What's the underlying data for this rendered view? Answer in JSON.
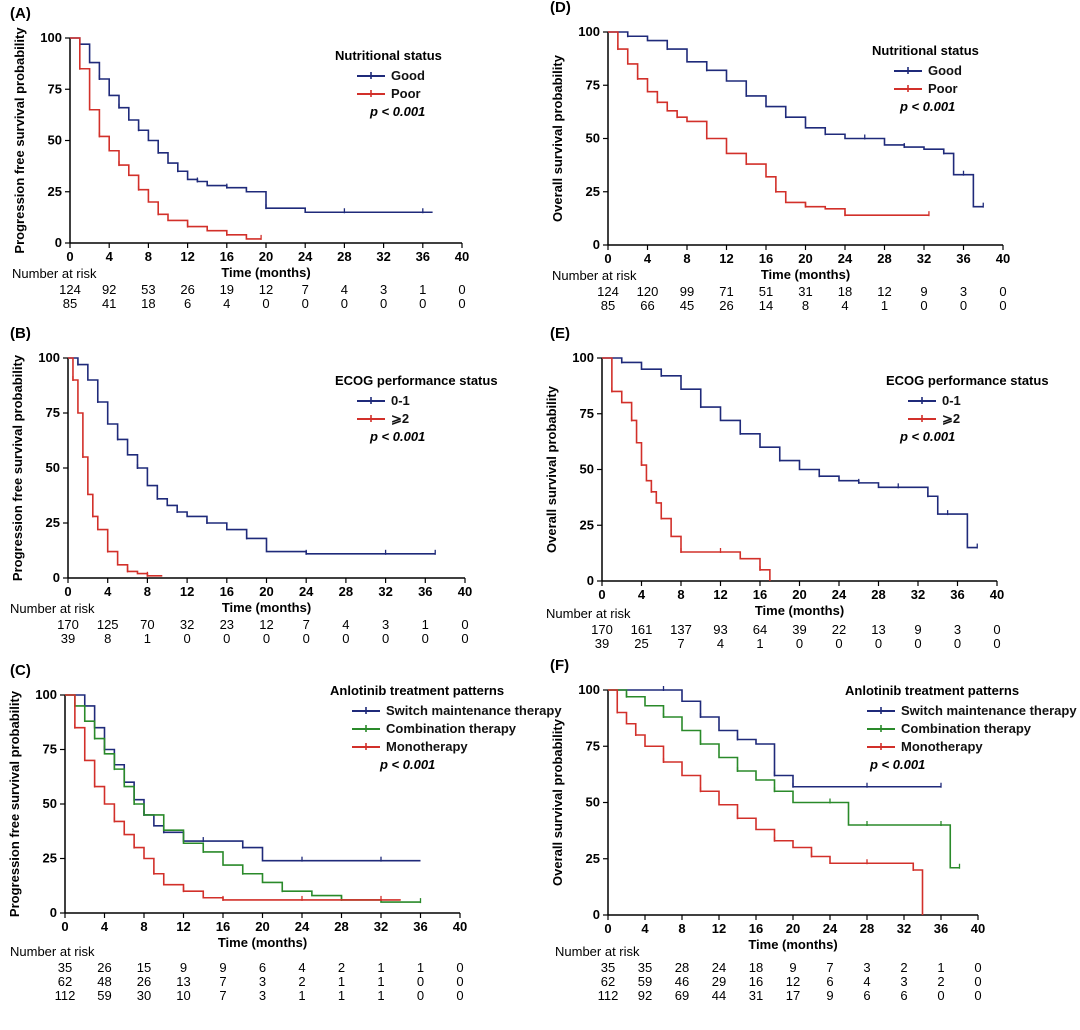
{
  "chart_data": [
    {
      "id": "A",
      "label": "(A)",
      "type": "line",
      "step": true,
      "ylabel": "Progression free survival probability",
      "xlabel": "Time (months)",
      "xlim": [
        0,
        40
      ],
      "ylim": [
        0,
        100
      ],
      "xticks": [
        "0",
        "4",
        "8",
        "12",
        "16",
        "20",
        "24",
        "28",
        "32",
        "36",
        "40"
      ],
      "yticks": [
        "0",
        "25",
        "50",
        "75",
        "100"
      ],
      "legend_title": "Nutritional status",
      "p_value": "p < 0.001",
      "risk_header": "Number at risk",
      "series": [
        {
          "name": "Good",
          "color": "#1f2a7a",
          "x": [
            0,
            1,
            2,
            3,
            4,
            5,
            6,
            7,
            8,
            9,
            10,
            11,
            12,
            13,
            14,
            16,
            18,
            20,
            24,
            28,
            32,
            36,
            37
          ],
          "y": [
            100,
            97,
            88,
            80,
            72,
            66,
            60,
            55,
            50,
            44,
            39,
            35,
            31,
            30,
            28,
            27,
            25,
            17,
            15,
            15,
            15,
            15,
            15
          ],
          "risk": [
            "124",
            "92",
            "53",
            "26",
            "19",
            "12",
            "7",
            "4",
            "3",
            "1",
            "0"
          ]
        },
        {
          "name": "Poor",
          "color": "#d2302a",
          "x": [
            0,
            1,
            2,
            3,
            4,
            5,
            6,
            7,
            8,
            9,
            10,
            12,
            14,
            16,
            18,
            19.5
          ],
          "y": [
            100,
            85,
            65,
            52,
            45,
            38,
            33,
            26,
            20,
            14,
            11,
            8,
            6,
            4,
            2,
            2
          ],
          "risk": [
            "85",
            "41",
            "18",
            "6",
            "4",
            "0",
            "0",
            "0",
            "0",
            "0",
            "0"
          ]
        }
      ]
    },
    {
      "id": "B",
      "label": "(B)",
      "type": "line",
      "step": true,
      "ylabel": "Progression free survival probability",
      "xlabel": "Time (months)",
      "xlim": [
        0,
        40
      ],
      "ylim": [
        0,
        100
      ],
      "xticks": [
        "0",
        "4",
        "8",
        "12",
        "16",
        "20",
        "24",
        "28",
        "32",
        "36",
        "40"
      ],
      "yticks": [
        "0",
        "25",
        "50",
        "75",
        "100"
      ],
      "legend_title": "ECOG performance status",
      "p_value": "p < 0.001",
      "risk_header": "Number at risk",
      "series": [
        {
          "name": "0-1",
          "color": "#1f2a7a",
          "x": [
            0,
            1,
            2,
            3,
            4,
            5,
            6,
            7,
            8,
            9,
            10,
            11,
            12,
            14,
            16,
            18,
            20,
            24,
            28,
            32,
            36,
            37
          ],
          "y": [
            100,
            97,
            90,
            80,
            70,
            63,
            56,
            50,
            42,
            36,
            33,
            30,
            28,
            25,
            22,
            18,
            12,
            11,
            11,
            11,
            11,
            11
          ],
          "risk": [
            "170",
            "125",
            "70",
            "32",
            "23",
            "12",
            "7",
            "4",
            "3",
            "1",
            "0"
          ]
        },
        {
          "name": "⩾2",
          "color": "#d2302a",
          "x": [
            0,
            0.5,
            1,
            1.5,
            2,
            2.5,
            3,
            4,
            5,
            6,
            7,
            8,
            9.5
          ],
          "y": [
            100,
            90,
            75,
            55,
            38,
            28,
            22,
            12,
            6,
            3,
            2,
            1,
            1
          ],
          "risk": [
            "39",
            "8",
            "1",
            "0",
            "0",
            "0",
            "0",
            "0",
            "0",
            "0",
            "0"
          ]
        }
      ]
    },
    {
      "id": "C",
      "label": "(C)",
      "type": "line",
      "step": true,
      "ylabel": "Progression free survival probability",
      "xlabel": "Time (months)",
      "xlim": [
        0,
        40
      ],
      "ylim": [
        0,
        100
      ],
      "xticks": [
        "0",
        "4",
        "8",
        "12",
        "16",
        "20",
        "24",
        "28",
        "32",
        "36",
        "40"
      ],
      "yticks": [
        "0",
        "25",
        "50",
        "75",
        "100"
      ],
      "legend_title": "Anlotinib treatment patterns",
      "p_value": "p < 0.001",
      "risk_header": "Number at risk",
      "series": [
        {
          "name": "Switch maintenance therapy",
          "color": "#1f2a7a",
          "x": [
            0,
            2,
            3,
            4,
            5,
            6,
            7,
            8,
            9,
            10,
            12,
            14,
            16,
            18,
            20,
            24,
            28,
            32,
            36
          ],
          "y": [
            100,
            95,
            85,
            75,
            68,
            60,
            52,
            45,
            40,
            37,
            33,
            33,
            33,
            30,
            24,
            24,
            24,
            24,
            24
          ],
          "risk": [
            "35",
            "26",
            "15",
            "9",
            "9",
            "6",
            "4",
            "2",
            "1",
            "1",
            "0"
          ]
        },
        {
          "name": "Combination therapy",
          "color": "#2a8a2a",
          "x": [
            0,
            1,
            2,
            3,
            4,
            5,
            6,
            7,
            8,
            10,
            12,
            14,
            16,
            18,
            20,
            22,
            25,
            28,
            32,
            36
          ],
          "y": [
            100,
            95,
            88,
            80,
            73,
            66,
            58,
            50,
            45,
            38,
            32,
            28,
            22,
            18,
            14,
            10,
            8,
            6,
            5,
            5
          ],
          "risk": [
            "62",
            "48",
            "26",
            "13",
            "7",
            "3",
            "2",
            "1",
            "1",
            "0",
            "0"
          ]
        },
        {
          "name": "Monotherapy",
          "color": "#d2302a",
          "x": [
            0,
            1,
            2,
            3,
            4,
            5,
            6,
            7,
            8,
            9,
            10,
            12,
            14,
            16,
            20,
            24,
            28,
            32,
            34
          ],
          "y": [
            100,
            85,
            70,
            58,
            50,
            42,
            36,
            30,
            25,
            18,
            13,
            10,
            7,
            6,
            6,
            6,
            6,
            6,
            6
          ],
          "risk": [
            "112",
            "59",
            "30",
            "10",
            "7",
            "3",
            "1",
            "1",
            "1",
            "0",
            "0"
          ]
        }
      ]
    },
    {
      "id": "D",
      "label": "(D)",
      "type": "line",
      "step": true,
      "ylabel": "Overall survival probability",
      "xlabel": "Time (months)",
      "xlim": [
        0,
        40
      ],
      "ylim": [
        0,
        100
      ],
      "xticks": [
        "0",
        "4",
        "8",
        "12",
        "16",
        "20",
        "24",
        "28",
        "32",
        "36",
        "40"
      ],
      "yticks": [
        "0",
        "25",
        "50",
        "75",
        "100"
      ],
      "legend_title": "Nutritional status",
      "p_value": "p < 0.001",
      "risk_header": "Number at risk",
      "series": [
        {
          "name": "Good",
          "color": "#1f2a7a",
          "x": [
            0,
            2,
            4,
            6,
            8,
            10,
            12,
            14,
            16,
            18,
            20,
            22,
            24,
            26,
            28,
            30,
            32,
            34,
            35,
            36,
            37,
            38
          ],
          "y": [
            100,
            98,
            96,
            92,
            86,
            82,
            77,
            70,
            65,
            60,
            55,
            52,
            50,
            50,
            47,
            46,
            45,
            43,
            33,
            33,
            18,
            18
          ],
          "risk": [
            "124",
            "120",
            "99",
            "71",
            "51",
            "31",
            "18",
            "12",
            "9",
            "3",
            "0"
          ]
        },
        {
          "name": "Poor",
          "color": "#d2302a",
          "x": [
            0,
            1,
            2,
            3,
            4,
            5,
            6,
            7,
            8,
            10,
            12,
            14,
            16,
            17,
            18,
            20,
            22,
            24,
            28,
            32.5
          ],
          "y": [
            100,
            92,
            85,
            78,
            72,
            67,
            63,
            60,
            58,
            50,
            43,
            38,
            32,
            25,
            20,
            18,
            17,
            14,
            14,
            14
          ],
          "risk": [
            "85",
            "66",
            "45",
            "26",
            "14",
            "8",
            "4",
            "1",
            "0",
            "0",
            "0"
          ]
        }
      ]
    },
    {
      "id": "E",
      "label": "(E)",
      "type": "line",
      "step": true,
      "ylabel": "Overall survival probability",
      "xlabel": "Time (months)",
      "xlim": [
        0,
        40
      ],
      "ylim": [
        0,
        100
      ],
      "xticks": [
        "0",
        "4",
        "8",
        "12",
        "16",
        "20",
        "24",
        "28",
        "32",
        "36",
        "40"
      ],
      "yticks": [
        "0",
        "25",
        "50",
        "75",
        "100"
      ],
      "legend_title": "ECOG performance status",
      "p_value": "p < 0.001",
      "risk_header": "Number at risk",
      "series": [
        {
          "name": "0-1",
          "color": "#1f2a7a",
          "x": [
            0,
            2,
            4,
            6,
            8,
            10,
            12,
            14,
            16,
            18,
            20,
            22,
            24,
            26,
            28,
            30,
            32,
            33,
            34,
            35,
            37,
            38
          ],
          "y": [
            100,
            98,
            95,
            92,
            86,
            78,
            72,
            66,
            60,
            54,
            50,
            47,
            45,
            44,
            42,
            42,
            42,
            38,
            30,
            30,
            15,
            15
          ],
          "risk": [
            "170",
            "161",
            "137",
            "93",
            "64",
            "39",
            "22",
            "13",
            "9",
            "3",
            "0"
          ]
        },
        {
          "name": "⩾2",
          "color": "#d2302a",
          "x": [
            0,
            1,
            2,
            3,
            3.5,
            4,
            4.5,
            5,
            5.5,
            6,
            7,
            8,
            10,
            12,
            14,
            16,
            17
          ],
          "y": [
            100,
            85,
            80,
            72,
            62,
            52,
            45,
            40,
            35,
            28,
            20,
            13,
            13,
            13,
            10,
            5,
            0
          ],
          "risk": [
            "39",
            "25",
            "7",
            "4",
            "1",
            "0",
            "0",
            "0",
            "0",
            "0",
            "0"
          ]
        }
      ]
    },
    {
      "id": "F",
      "label": "(F)",
      "type": "line",
      "step": true,
      "ylabel": "Overall survival probability",
      "xlabel": "Time (months)",
      "xlim": [
        0,
        40
      ],
      "ylim": [
        0,
        100
      ],
      "xticks": [
        "0",
        "4",
        "8",
        "12",
        "16",
        "20",
        "24",
        "28",
        "32",
        "36",
        "40"
      ],
      "yticks": [
        "0",
        "25",
        "50",
        "75",
        "100"
      ],
      "legend_title": "Anlotinib treatment patterns",
      "p_value": "p < 0.001",
      "risk_header": "Number at risk",
      "series": [
        {
          "name": "Switch maintenance therapy",
          "color": "#1f2a7a",
          "x": [
            0,
            6,
            8,
            10,
            12,
            14,
            16,
            18,
            19,
            20,
            24,
            28,
            32,
            36
          ],
          "y": [
            100,
            100,
            95,
            88,
            82,
            78,
            76,
            62,
            62,
            57,
            57,
            57,
            57,
            57
          ],
          "risk": [
            "35",
            "35",
            "28",
            "24",
            "18",
            "9",
            "7",
            "3",
            "2",
            "1",
            "0"
          ]
        },
        {
          "name": "Combination therapy",
          "color": "#2a8a2a",
          "x": [
            0,
            2,
            4,
            6,
            8,
            10,
            12,
            14,
            16,
            18,
            20,
            24,
            26,
            28,
            32,
            36,
            37,
            38
          ],
          "y": [
            100,
            97,
            93,
            88,
            82,
            76,
            70,
            64,
            60,
            55,
            50,
            50,
            40,
            40,
            40,
            40,
            21,
            21
          ],
          "risk": [
            "62",
            "59",
            "46",
            "29",
            "16",
            "12",
            "6",
            "4",
            "3",
            "2",
            "0"
          ]
        },
        {
          "name": "Monotherapy",
          "color": "#d2302a",
          "x": [
            0,
            1,
            2,
            3,
            4,
            6,
            8,
            10,
            12,
            14,
            16,
            18,
            20,
            22,
            24,
            28,
            32,
            33,
            34
          ],
          "y": [
            100,
            90,
            85,
            80,
            75,
            68,
            62,
            55,
            49,
            43,
            38,
            33,
            30,
            26,
            23,
            23,
            23,
            20,
            0
          ],
          "risk": [
            "112",
            "92",
            "69",
            "44",
            "31",
            "17",
            "9",
            "6",
            "6",
            "0",
            "0"
          ]
        }
      ]
    }
  ]
}
